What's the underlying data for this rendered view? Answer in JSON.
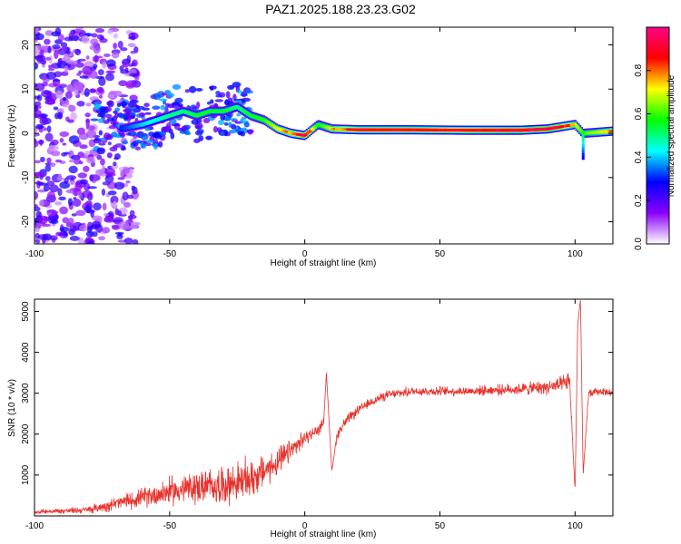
{
  "page": {
    "title": "PAZ1.2025.188.23.23.G02"
  },
  "chart_data": [
    {
      "type": "heatmap",
      "title": "PAZ1.2025.188.23.23.G02",
      "xlabel": "Height of straight line (km)",
      "ylabel": "Frequency (Hz)",
      "xlim": [
        -100,
        114
      ],
      "ylim": [
        -25,
        24
      ],
      "xticks": [
        -100,
        -50,
        0,
        50,
        100
      ],
      "yticks": [
        -20,
        -10,
        0,
        10,
        20
      ],
      "colorbar": {
        "label": "Normalized spectral amplitude",
        "range": [
          0,
          1
        ],
        "ticks": [
          0.0,
          0.2,
          0.4,
          0.6,
          0.8
        ],
        "colors": [
          "#ffffff",
          "#8a00ff",
          "#0000ff",
          "#00ffff",
          "#00ff00",
          "#ffff00",
          "#ff0000",
          "#ff0088"
        ]
      },
      "ridge": {
        "x": [
          -68,
          -60,
          -55,
          -50,
          -45,
          -40,
          -35,
          -30,
          -25,
          -20,
          -15,
          -10,
          -5,
          0,
          5,
          10,
          20,
          40,
          60,
          80,
          90,
          95,
          100,
          103,
          114
        ],
        "freq": [
          1,
          2,
          3,
          4,
          5,
          4,
          5,
          5,
          6,
          4,
          3,
          1,
          0,
          -0.5,
          2,
          1,
          0.8,
          0.8,
          0.7,
          0.7,
          1,
          1.5,
          2,
          0,
          0.5
        ],
        "amplitude": [
          0.3,
          0.4,
          0.45,
          0.5,
          0.5,
          0.55,
          0.55,
          0.55,
          0.5,
          0.55,
          0.6,
          0.7,
          0.75,
          0.9,
          0.55,
          0.7,
          0.85,
          0.85,
          0.85,
          0.9,
          0.9,
          0.85,
          0.7,
          0.6,
          0.75
        ]
      }
    },
    {
      "type": "line",
      "xlabel": "Height of straight line (km)",
      "ylabel": "SNR (10 * v/v)",
      "xlim": [
        -100,
        114
      ],
      "ylim": [
        0,
        5300
      ],
      "xticks": [
        -100,
        -50,
        0,
        50,
        100
      ],
      "yticks": [
        1000,
        2000,
        3000,
        4000,
        5000
      ],
      "color": "#e8322d",
      "x": [
        -100,
        -90,
        -80,
        -70,
        -60,
        -50,
        -40,
        -30,
        -20,
        -15,
        -10,
        -5,
        0,
        5,
        7,
        8,
        10,
        12,
        15,
        20,
        25,
        30,
        40,
        50,
        60,
        70,
        80,
        90,
        95,
        98,
        100,
        101,
        102,
        103,
        105,
        110,
        114
      ],
      "y": [
        100,
        120,
        150,
        300,
        450,
        600,
        700,
        750,
        900,
        1100,
        1300,
        1600,
        1900,
        2100,
        2300,
        3500,
        1100,
        2000,
        2300,
        2600,
        2800,
        2950,
        3050,
        3050,
        3050,
        3080,
        3100,
        3150,
        3200,
        3300,
        600,
        4700,
        5300,
        1000,
        3000,
        3050,
        3000
      ],
      "noise": [
        40,
        60,
        80,
        150,
        200,
        300,
        350,
        400,
        450,
        350,
        300,
        250,
        150,
        120,
        100,
        0,
        0,
        120,
        120,
        100,
        100,
        100,
        100,
        100,
        100,
        110,
        130,
        160,
        180,
        200,
        0,
        0,
        0,
        0,
        100,
        80,
        80
      ]
    }
  ]
}
